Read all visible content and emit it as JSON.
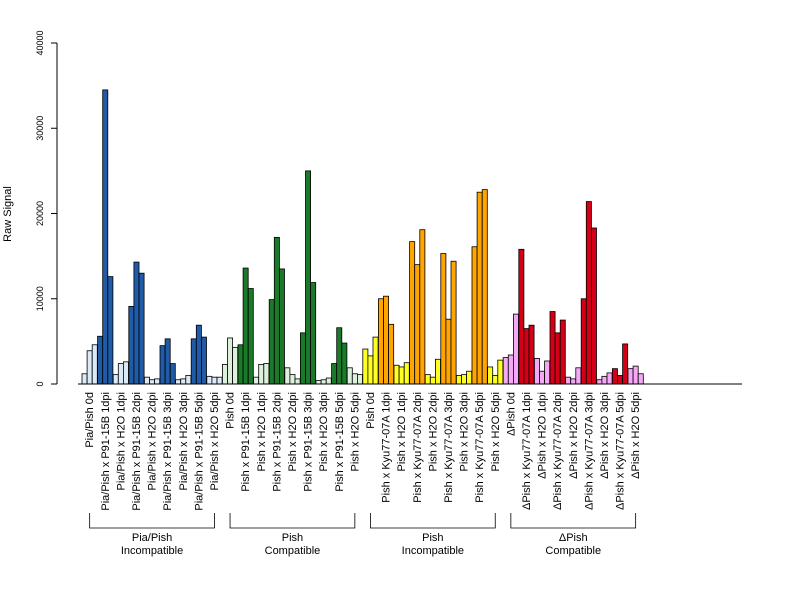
{
  "chart_data": {
    "type": "bar",
    "ylabel": "Raw Signal",
    "ylim": [
      0,
      40000
    ],
    "yticks": [
      "0",
      "10000",
      "20000",
      "30000",
      "40000"
    ],
    "grid": false,
    "colors": {
      "light_blue": "#dce9f6",
      "blue": "#1f5ba6",
      "light_green": "#dcf0dc",
      "green": "#1a7a2a",
      "yellow": "#ffff22",
      "orange": "#ffa500",
      "pink": "#f5a8f5",
      "red": "#d40017"
    },
    "categories": [
      {
        "label": "Pia/Pish 0d",
        "color": "light_blue",
        "values": [
          1200,
          3900,
          4600
        ]
      },
      {
        "label": "Pia/Pish x P91-15B 1dpi",
        "color": "blue",
        "values": [
          5600,
          34500,
          12600
        ]
      },
      {
        "label": "Pia/Pish x H2O 1dpi",
        "color": "light_blue",
        "values": [
          1100,
          2400,
          2600
        ]
      },
      {
        "label": "Pia/Pish x P91-15B 2dpi",
        "color": "blue",
        "values": [
          9100,
          14300,
          13000
        ]
      },
      {
        "label": "Pia/Pish x H2O 2dpi",
        "color": "light_blue",
        "values": [
          800,
          500,
          600
        ]
      },
      {
        "label": "Pia/Pish x P91-15B 3dpi",
        "color": "blue",
        "values": [
          4500,
          5300,
          2400
        ]
      },
      {
        "label": "Pia/Pish x H2O 3dpi",
        "color": "light_blue",
        "values": [
          500,
          600,
          1000
        ]
      },
      {
        "label": "Pia/Pish x P91-15B 5dpi",
        "color": "blue",
        "values": [
          5300,
          6900,
          5500
        ]
      },
      {
        "label": "Pia/Pish x H2O 5dpi",
        "color": "light_blue",
        "values": [
          900,
          800,
          800
        ]
      },
      {
        "label": "Pish 0d",
        "color": "light_green",
        "values": [
          2300,
          5400,
          4300
        ]
      },
      {
        "label": "Pish x P91-15B 1dpi",
        "color": "green",
        "values": [
          4600,
          13600,
          11200
        ]
      },
      {
        "label": "Pish x H2O 1dpi",
        "color": "light_green",
        "values": [
          800,
          2300,
          2400
        ]
      },
      {
        "label": "Pish x P91-15B 2dpi",
        "color": "green",
        "values": [
          9900,
          17200,
          13500
        ]
      },
      {
        "label": "Pish x H2O 2dpi",
        "color": "light_green",
        "values": [
          1900,
          1100,
          600
        ]
      },
      {
        "label": "Pish x P91-15B 3dpi",
        "color": "green",
        "values": [
          6000,
          25000,
          11900
        ]
      },
      {
        "label": "Pish x H2O 3dpi",
        "color": "light_green",
        "values": [
          400,
          500,
          700
        ]
      },
      {
        "label": "Pish x P91-15B 5dpi",
        "color": "green",
        "values": [
          2400,
          6600,
          4800
        ]
      },
      {
        "label": "Pish x H2O 5dpi",
        "color": "light_green",
        "values": [
          1900,
          1200,
          1100
        ]
      },
      {
        "label": "Pish 0d",
        "color": "yellow",
        "values": [
          4100,
          3300,
          5500
        ]
      },
      {
        "label": "Pish x Kyu77-07A 1dpi",
        "color": "orange",
        "values": [
          10000,
          10300,
          7000
        ]
      },
      {
        "label": "Pish x H2O 1dpi",
        "color": "yellow",
        "values": [
          2200,
          2000,
          2500
        ]
      },
      {
        "label": "Pish x Kyu77-07A 2dpi",
        "color": "orange",
        "values": [
          16700,
          14000,
          18100
        ]
      },
      {
        "label": "Pish x H2O 2dpi",
        "color": "yellow",
        "values": [
          1100,
          800,
          2900
        ]
      },
      {
        "label": "Pish x Kyu77-07A 3dpi",
        "color": "orange",
        "values": [
          15300,
          7600,
          14400
        ]
      },
      {
        "label": "Pish x H2O 3dpi",
        "color": "yellow",
        "values": [
          1000,
          1100,
          1500
        ]
      },
      {
        "label": "Pish x Kyu77-07A 5dpi",
        "color": "orange",
        "values": [
          16100,
          22500,
          22800
        ]
      },
      {
        "label": "Pish x H2O 5dpi",
        "color": "yellow",
        "values": [
          2000,
          1000,
          2800
        ]
      },
      {
        "label": "ΔPish 0d",
        "color": "pink",
        "values": [
          3100,
          3400,
          8200
        ]
      },
      {
        "label": "ΔPish x Kyu77-07A 1dpi",
        "color": "red",
        "values": [
          15800,
          6500,
          6900
        ]
      },
      {
        "label": "ΔPish x H2O 1dpi",
        "color": "pink",
        "values": [
          3000,
          1500,
          2700
        ]
      },
      {
        "label": "ΔPish x Kyu77-07A 2dpi",
        "color": "red",
        "values": [
          8500,
          6000,
          7500
        ]
      },
      {
        "label": "ΔPish x H2O 2dpi",
        "color": "pink",
        "values": [
          800,
          600,
          1900
        ]
      },
      {
        "label": "ΔPish x Kyu77-07A 3dpi",
        "color": "red",
        "values": [
          10000,
          21400,
          18300
        ]
      },
      {
        "label": "ΔPish x H2O 3dpi",
        "color": "pink",
        "values": [
          500,
          900,
          1300
        ]
      },
      {
        "label": "ΔPish x Kyu77-07A 5dpi",
        "color": "red",
        "values": [
          1800,
          1000,
          4700
        ]
      },
      {
        "label": "ΔPish x H2O 5dpi",
        "color": "pink",
        "values": [
          1800,
          2100,
          1200
        ]
      }
    ],
    "groups": [
      {
        "line1": "Pia/Pish",
        "line2": "Incompatible",
        "first": 0,
        "last": 8
      },
      {
        "line1": "Pish",
        "line2": "Compatible",
        "first": 9,
        "last": 17
      },
      {
        "line1": "Pish",
        "line2": "Incompatible",
        "first": 18,
        "last": 26
      },
      {
        "line1": "ΔPish",
        "line2": "Compatible",
        "first": 27,
        "last": 35
      }
    ]
  }
}
